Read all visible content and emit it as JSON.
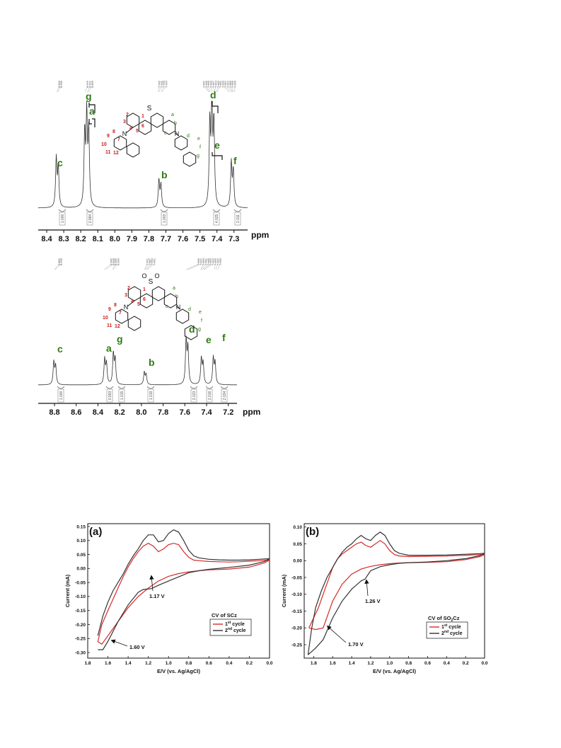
{
  "colors": {
    "label_green": "#2f7a12",
    "atom_red": "#c81e1e",
    "cycle1": "#d62a2a",
    "cycle2": "#333333"
  },
  "chart_data": [
    {
      "type": "line",
      "name": "nmr-scz",
      "xlabel_unit": "ppm",
      "xlim": [
        8.45,
        7.22
      ],
      "ticks": [
        "8.4",
        "8.3",
        "8.2",
        "8.1",
        "8.0",
        "7.9",
        "7.8",
        "7.7",
        "7.6",
        "7.5",
        "7.4",
        "7.3"
      ],
      "peaks": [
        {
          "label": "c",
          "ppm": 8.338,
          "height": 0.48
        },
        {
          "label": "a/g",
          "ppm": 8.165,
          "height": 0.87
        },
        {
          "label": "b",
          "ppm": 7.735,
          "height": 0.27
        },
        {
          "label": "d/e",
          "ppm": 7.43,
          "height": 0.98
        },
        {
          "label": "f",
          "ppm": 7.31,
          "height": 0.44
        }
      ],
      "peak_labels": [
        "c",
        "g",
        "a",
        "b",
        "d",
        "e",
        "f"
      ],
      "integrals": [
        "1.000",
        "2.984",
        "1.003",
        "4.025",
        "2.011"
      ],
      "shift_labels": {
        "group1": [
          "8.340",
          "8.336"
        ],
        "group2": [
          "8.176",
          "8.161",
          "8.156"
        ],
        "group3": [
          "7.745",
          "7.741",
          "7.728",
          "7.724"
        ],
        "group4": [
          "7.447",
          "7.446",
          "7.440",
          "7.430",
          "7.417",
          "7.414",
          "7.403",
          "7.401",
          "7.328",
          "7.322",
          "7.312",
          "7.309",
          "7.306",
          "7.296"
        ]
      },
      "molecule": {
        "heteroatom": "S",
        "atom_numbers": [
          "1",
          "2",
          "3",
          "4",
          "5",
          "6",
          "7",
          "8",
          "9",
          "10",
          "11",
          "12"
        ],
        "proton_letters": [
          "a",
          "b",
          "c",
          "d",
          "e",
          "f",
          "g"
        ],
        "nitrogen": "N"
      }
    },
    {
      "type": "line",
      "name": "nmr-so2cz",
      "xlabel_unit": "ppm",
      "xlim": [
        8.95,
        7.12
      ],
      "ticks": [
        "8.8",
        "8.6",
        "8.4",
        "8.2",
        "8.0",
        "7.8",
        "7.6",
        "7.4",
        "7.2"
      ],
      "peaks": [
        {
          "label": "c",
          "ppm": 8.798,
          "height": 0.42
        },
        {
          "label": "a",
          "ppm": 8.33,
          "height": 0.47
        },
        {
          "label": "g",
          "ppm": 8.25,
          "height": 0.57
        },
        {
          "label": "b",
          "ppm": 7.965,
          "height": 0.23
        },
        {
          "label": "d",
          "ppm": 7.58,
          "height": 0.82
        },
        {
          "label": "e",
          "ppm": 7.44,
          "height": 0.48
        },
        {
          "label": "f",
          "ppm": 7.33,
          "height": 0.49
        }
      ],
      "peak_labels": [
        "c",
        "a",
        "g",
        "b",
        "d",
        "e",
        "f"
      ],
      "integrals": [
        "1.000",
        "0.993",
        "1.015",
        "1.019",
        "2.023",
        "2.016",
        "2.034"
      ],
      "shift_labels": {
        "group1": [
          "8.800",
          "8.796"
        ],
        "group2": [
          "8.345",
          "8.328",
          "8.266",
          "8.260"
        ],
        "group3": [
          "7.971",
          "7.967",
          "7.954",
          "7.951"
        ],
        "group4": [
          "7.588",
          "7.572",
          "7.454",
          "7.451",
          "7.440",
          "7.429",
          "7.423",
          "7.329",
          "7.315",
          "7.299"
        ]
      },
      "molecule": {
        "heteroatom": "S",
        "oxygens": [
          "O",
          "O"
        ],
        "atom_numbers": [
          "1",
          "2",
          "3",
          "4",
          "5",
          "6",
          "7",
          "8",
          "9",
          "10",
          "11",
          "12"
        ],
        "proton_letters": [
          "a",
          "b",
          "c",
          "d",
          "e",
          "f",
          "g"
        ],
        "nitrogen": "N"
      }
    },
    {
      "type": "line",
      "panel_label": "(a)",
      "xlabel": "E/V (vs. Ag/AgCl)",
      "ylabel": "Current (mA)",
      "xlim": [
        1.8,
        0.0
      ],
      "ylim": [
        -0.32,
        0.16
      ],
      "x_ticks": [
        "1.8",
        "1.6",
        "1.4",
        "1.2",
        "1.0",
        "0.8",
        "0.6",
        "0.4",
        "0.2",
        "0.0"
      ],
      "y_ticks": [
        "0.15",
        "0.10",
        "0.05",
        "0.00",
        "-0.05",
        "-0.10",
        "-0.15",
        "-0.20",
        "-0.25",
        "-0.30"
      ],
      "legend_title": "CV of SCz",
      "legend_position": "bottom-right",
      "series": [
        {
          "name": "1st cycle",
          "label_main": "1",
          "label_sup": "st",
          "label_rest": " cycle",
          "color": "#d62a2a",
          "x": [
            1.7,
            1.66,
            1.6,
            1.55,
            1.5,
            1.45,
            1.4,
            1.35,
            1.3,
            1.25,
            1.2,
            1.15,
            1.1,
            1.05,
            1.0,
            0.95,
            0.9,
            0.85,
            0.8,
            0.75,
            0.7,
            0.6,
            0.5,
            0.4,
            0.3,
            0.2,
            0.1,
            0.05,
            0.0,
            0.05,
            0.2,
            0.4,
            0.6,
            0.7,
            0.8,
            0.9,
            1.0,
            1.1,
            1.2,
            1.3,
            1.4,
            1.5,
            1.6,
            1.66,
            1.7
          ],
          "y": [
            -0.262,
            -0.2,
            -0.15,
            -0.11,
            -0.07,
            -0.03,
            0.005,
            0.035,
            0.06,
            0.08,
            0.09,
            0.08,
            0.06,
            0.07,
            0.085,
            0.09,
            0.085,
            0.06,
            0.04,
            0.03,
            0.028,
            0.025,
            0.024,
            0.023,
            0.024,
            0.026,
            0.028,
            0.029,
            0.03,
            0.02,
            0.005,
            -0.002,
            -0.005,
            -0.008,
            -0.012,
            -0.018,
            -0.028,
            -0.045,
            -0.07,
            -0.1,
            -0.14,
            -0.19,
            -0.24,
            -0.27,
            -0.262
          ]
        },
        {
          "name": "2nd cycle",
          "label_main": "2",
          "label_sup": "nd",
          "label_rest": " cycle",
          "color": "#333333",
          "x": [
            1.7,
            1.65,
            1.6,
            1.55,
            1.5,
            1.45,
            1.4,
            1.35,
            1.3,
            1.25,
            1.2,
            1.15,
            1.1,
            1.05,
            1.0,
            0.95,
            0.9,
            0.85,
            0.8,
            0.75,
            0.7,
            0.6,
            0.5,
            0.4,
            0.3,
            0.2,
            0.1,
            0.05,
            0.0,
            0.05,
            0.2,
            0.4,
            0.6,
            0.7,
            0.8,
            0.9,
            1.0,
            1.1,
            1.17,
            1.25,
            1.3,
            1.4,
            1.5,
            1.6,
            1.65,
            1.7
          ],
          "y": [
            -0.24,
            -0.17,
            -0.12,
            -0.08,
            -0.05,
            -0.02,
            0.015,
            0.045,
            0.07,
            0.1,
            0.12,
            0.12,
            0.095,
            0.1,
            0.125,
            0.138,
            0.13,
            0.1,
            0.065,
            0.045,
            0.038,
            0.033,
            0.031,
            0.03,
            0.03,
            0.031,
            0.033,
            0.034,
            0.035,
            0.025,
            0.012,
            0.004,
            -0.003,
            -0.008,
            -0.015,
            -0.03,
            -0.045,
            -0.06,
            -0.072,
            -0.075,
            -0.085,
            -0.13,
            -0.19,
            -0.26,
            -0.29,
            -0.29
          ]
        }
      ],
      "annotations": [
        "1.17 V",
        "1.60 V"
      ]
    },
    {
      "type": "line",
      "panel_label": "(b)",
      "xlabel": "E/V (vs. Ag/AgCl)",
      "ylabel": "Current (mA)",
      "xlim": [
        1.9,
        0.0
      ],
      "ylim": [
        -0.29,
        0.11
      ],
      "x_ticks": [
        "1.8",
        "1.6",
        "1.4",
        "1.2",
        "1.0",
        "0.8",
        "0.6",
        "0.4",
        "0.2",
        "0.0"
      ],
      "y_ticks": [
        "0.10",
        "0.05",
        "0.00",
        "-0.05",
        "-0.10",
        "-0.15",
        "-0.20",
        "-0.25"
      ],
      "legend_title_main": "CV of SO",
      "legend_title_sub": "2",
      "legend_title_rest": "Cz",
      "legend_position": "bottom-right",
      "series": [
        {
          "name": "1st cycle",
          "label_main": "1",
          "label_sup": "st",
          "label_rest": " cycle",
          "color": "#d62a2a",
          "x": [
            1.85,
            1.8,
            1.75,
            1.7,
            1.65,
            1.6,
            1.55,
            1.5,
            1.45,
            1.4,
            1.35,
            1.3,
            1.25,
            1.2,
            1.15,
            1.1,
            1.05,
            1.0,
            0.95,
            0.9,
            0.8,
            0.6,
            0.4,
            0.2,
            0.05,
            0.0,
            0.05,
            0.2,
            0.4,
            0.6,
            0.8,
            0.9,
            1.0,
            1.1,
            1.2,
            1.3,
            1.4,
            1.5,
            1.6,
            1.7,
            1.78,
            1.85
          ],
          "y": [
            -0.2,
            -0.17,
            -0.14,
            -0.1,
            -0.06,
            -0.02,
            0.005,
            0.02,
            0.03,
            0.04,
            0.05,
            0.055,
            0.045,
            0.04,
            0.05,
            0.06,
            0.05,
            0.03,
            0.018,
            0.014,
            0.012,
            0.013,
            0.014,
            0.016,
            0.018,
            0.018,
            0.012,
            0.003,
            -0.003,
            -0.005,
            -0.006,
            -0.007,
            -0.009,
            -0.012,
            -0.017,
            -0.025,
            -0.04,
            -0.07,
            -0.12,
            -0.2,
            -0.205,
            -0.2
          ]
        },
        {
          "name": "2nd cycle",
          "label_main": "2",
          "label_sup": "nd",
          "label_rest": " cycle",
          "color": "#333333",
          "x": [
            1.86,
            1.82,
            1.78,
            1.72,
            1.66,
            1.6,
            1.55,
            1.5,
            1.45,
            1.4,
            1.35,
            1.3,
            1.25,
            1.2,
            1.15,
            1.1,
            1.05,
            1.0,
            0.95,
            0.9,
            0.8,
            0.6,
            0.4,
            0.2,
            0.05,
            0.0,
            0.05,
            0.2,
            0.4,
            0.6,
            0.8,
            0.9,
            1.0,
            1.1,
            1.2,
            1.26,
            1.3,
            1.4,
            1.5,
            1.6,
            1.7,
            1.78,
            1.86
          ],
          "y": [
            -0.28,
            -0.2,
            -0.14,
            -0.09,
            -0.05,
            -0.02,
            0.005,
            0.025,
            0.04,
            0.05,
            0.065,
            0.075,
            0.065,
            0.06,
            0.075,
            0.085,
            0.075,
            0.05,
            0.03,
            0.022,
            0.016,
            0.016,
            0.017,
            0.019,
            0.021,
            0.022,
            0.015,
            0.006,
            0.0,
            -0.004,
            -0.006,
            -0.008,
            -0.012,
            -0.018,
            -0.03,
            -0.055,
            -0.06,
            -0.085,
            -0.12,
            -0.17,
            -0.235,
            -0.26,
            -0.28
          ]
        }
      ],
      "annotations": [
        "1.26 V",
        "1.70 V"
      ]
    }
  ]
}
